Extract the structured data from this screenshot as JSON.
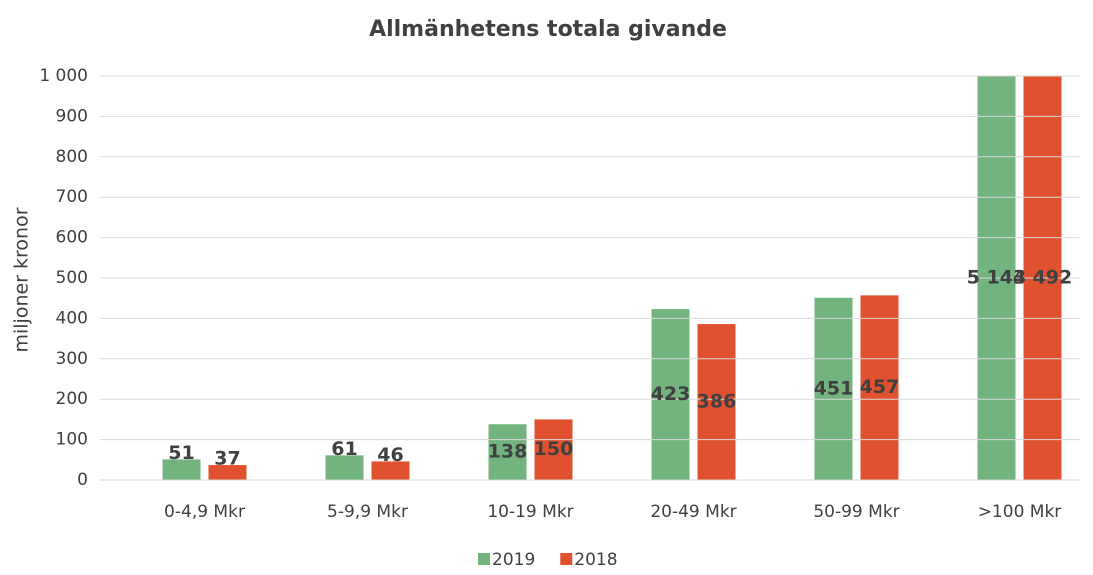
{
  "chart_data": {
    "type": "bar",
    "title": "Allmänhetens totala givande",
    "y_label": "miljoner kronor",
    "categories": [
      "0-4,9 Mkr",
      "5-9,9 Mkr",
      "10-19 Mkr",
      "20-49 Mkr",
      "50-99 Mkr",
      ">100 Mkr"
    ],
    "series": [
      {
        "name": "2019",
        "color": "#72b37e",
        "values": [
          51,
          61,
          138,
          423,
          451,
          5143
        ],
        "value_labels": [
          "51",
          "61",
          "138",
          "423",
          "451",
          "5 143"
        ]
      },
      {
        "name": "2018",
        "color": "#e0522f",
        "values": [
          37,
          46,
          150,
          386,
          457,
          4492
        ],
        "value_labels": [
          "37",
          "46",
          "150",
          "386",
          "457",
          "4 492"
        ]
      }
    ],
    "ylim": [
      0,
      1000
    ],
    "yticks": [
      0,
      100,
      200,
      300,
      400,
      500,
      600,
      700,
      800,
      900,
      {
        "value": 1000,
        "label": "1 000"
      }
    ],
    "grid": true,
    "legend": "bottom"
  }
}
